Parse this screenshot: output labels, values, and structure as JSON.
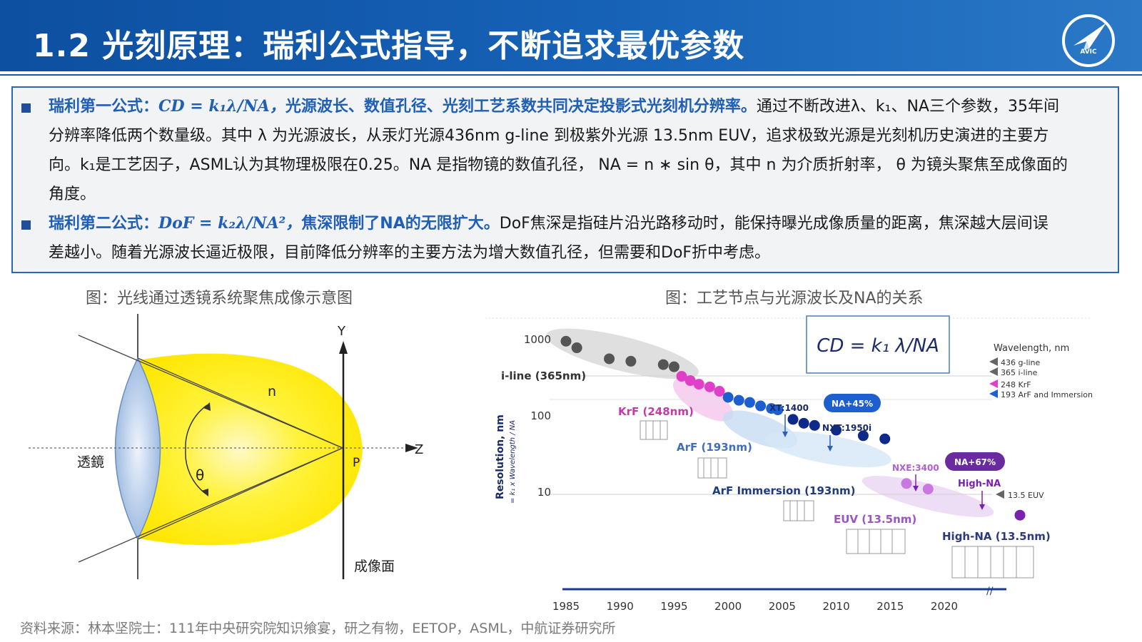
{
  "header": {
    "title": "1.2 光刻原理：瑞利公式指导，不断追求最优参数",
    "logo_text": "AVIC"
  },
  "box": {
    "p1": {
      "label": "瑞利第一公式：",
      "formula": "CD = k₁λ/NA，",
      "highlight": "光源波长、数值孔径、光刻工艺系数共同决定投影式光刻机分辨率。",
      "line1_rest": "通过不断改进λ、k₁、NA三个参数，35年间",
      "line2": "分辨率降低两个数量级。其中 λ 为光源波长，从汞灯光源436nm g-line 到极紫外光源 13.5nm EUV，追求极致光源是光刻机历史演进的主要方",
      "line3": "向。k₁是工艺因子，ASML认为其物理极限在0.25。NA 是指物镜的数值孔径， NA = n ∗ sin θ，其中 n 为介质折射率， θ 为镜头聚焦至成像面的",
      "line4": "角度。"
    },
    "p2": {
      "label": "瑞利第二公式：",
      "formula": "DoF = k₂λ/NA²，",
      "highlight": "焦深限制了NA的无限扩大。",
      "line1_rest": "DoF焦深是指硅片沿光路移动时，能保持曝光成像质量的距离，焦深越大层间误",
      "line2": "差越小。随着光源波长逼近极限，目前降低分辨率的主要方法为增大数值孔径，但需要和DoF折中考虑。"
    }
  },
  "captions": {
    "left": "图：光线通过透镜系统聚焦成像示意图",
    "right": "图：工艺节点与光源波长及NA的关系"
  },
  "lens": {
    "lens_label": "透鏡",
    "n_label": "n",
    "theta_label": "θ",
    "y_label": "Y",
    "z_label": "Z",
    "p_label": "P",
    "image_plane_label": "成像面",
    "colors": {
      "light": "#ffee33",
      "lens": "#a8c4e8"
    }
  },
  "chart_data": {
    "type": "scatter",
    "title": "",
    "formula_box": "CD = k₁ λ/NA",
    "ylabel": "Resolution, nm",
    "ylabel_sub": "= k₁ x Wavelength / NA",
    "y_scale": "log",
    "y_ticks": [
      "1000",
      "100",
      "10"
    ],
    "x_ticks": [
      "1985",
      "1990",
      "1995",
      "2000",
      "2005",
      "2010",
      "2015",
      "2020"
    ],
    "series": [
      {
        "name": "i-line (365nm)",
        "color": "#555555",
        "x": [
          1985,
          1986,
          1989,
          1991,
          1994,
          1995
        ],
        "y": [
          950,
          780,
          560,
          520,
          470,
          440
        ]
      },
      {
        "name": "KrF (248nm)",
        "color": "#e040c8",
        "x": [
          1995.7,
          1996.5,
          1997.3,
          1998.3,
          1999.2
        ],
        "y": [
          330,
          290,
          260,
          240,
          210
        ]
      },
      {
        "name": "ArF (193nm)",
        "color": "#1e5fd0",
        "x": [
          2000,
          2001,
          2002,
          2003,
          2004,
          2004.6
        ],
        "y": [
          175,
          160,
          150,
          135,
          125,
          120
        ]
      },
      {
        "name": "ArF Immersion (193nm)",
        "color": "#0d2a8a",
        "x": [
          2006,
          2007,
          2008,
          2010,
          2012.5,
          2014.5
        ],
        "y": [
          90,
          80,
          75,
          65,
          55,
          50
        ]
      },
      {
        "name": "EUV (13.5nm)",
        "color": "#c878e0",
        "x": [
          2016.5,
          2018.5
        ],
        "y": [
          13,
          11
        ]
      },
      {
        "name": "High-NA (13.5nm)",
        "color": "#7a22b0",
        "x": [
          2027
        ],
        "y": [
          5
        ]
      }
    ],
    "annotations": [
      "XT:1400",
      "NA+45%",
      "NXT:1950i",
      "NXE:3400",
      "NA+67%",
      "High-NA"
    ],
    "legend": {
      "title": "Wavelength, nm",
      "items": [
        {
          "label": "436 g-line",
          "color": "#666666"
        },
        {
          "label": "365 i-line",
          "color": "#666666"
        },
        {
          "label": "248 KrF",
          "color": "#e040c8"
        },
        {
          "label": "193 ArF and Immersion",
          "color": "#1e5fd0"
        }
      ],
      "euv_label": "13.5 EUV"
    }
  },
  "source": "资料来源：林本坚院士：111年中央研究院知识飨宴，研之有物，EETOP，ASML，中航证券研究所"
}
